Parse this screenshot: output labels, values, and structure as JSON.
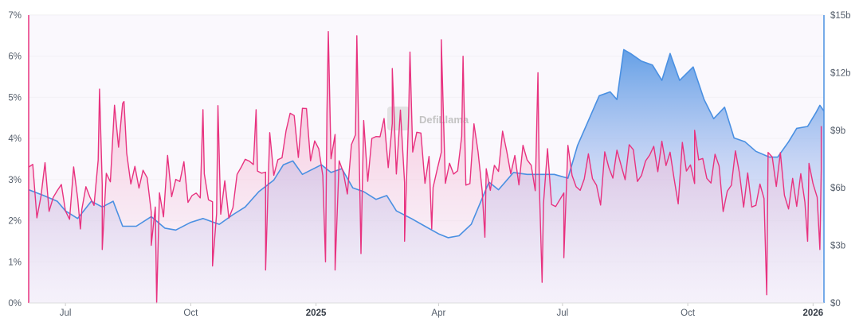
{
  "chart_data": {
    "type": "line",
    "watermark": "DefiLlama",
    "x_ticks": [
      {
        "date": "2024-07-01",
        "label": "Jul",
        "bold": false
      },
      {
        "date": "2024-10-01",
        "label": "Oct",
        "bold": false
      },
      {
        "date": "2025-01-01",
        "label": "2025",
        "bold": true
      },
      {
        "date": "2025-04-01",
        "label": "Apr",
        "bold": false
      },
      {
        "date": "2025-07-01",
        "label": "Jul",
        "bold": false
      },
      {
        "date": "2025-10-01",
        "label": "Oct",
        "bold": false
      },
      {
        "date": "2026-01-01",
        "label": "2026",
        "bold": true
      }
    ],
    "xlim": [
      "2024-06-04",
      "2026-01-09"
    ],
    "left_axis": {
      "ylim": [
        0,
        7
      ],
      "ticks": [
        0,
        1,
        2,
        3,
        4,
        5,
        6,
        7
      ],
      "tick_labels": [
        "0%",
        "1%",
        "2%",
        "3%",
        "4%",
        "5%",
        "6%",
        "7%"
      ],
      "color": "#e8327f"
    },
    "right_axis": {
      "ylim": [
        0,
        15
      ],
      "ticks": [
        0,
        3,
        6,
        9,
        12,
        15
      ],
      "tick_labels": [
        "$0",
        "$3b",
        "$6b",
        "$9b",
        "$12b",
        "$15b"
      ],
      "color": "#4a90e2"
    },
    "grid": true,
    "legend": "none",
    "series": [
      {
        "axis": "left",
        "color": "#e8327f",
        "step_days": 3,
        "base_points": [
          [
            "2024-06-04",
            2.7
          ],
          [
            "2024-06-20",
            2.8
          ],
          [
            "2024-07-05",
            2.6
          ],
          [
            "2024-07-15",
            2.8
          ],
          [
            "2024-07-28",
            3.2
          ],
          [
            "2024-08-10",
            4.5
          ],
          [
            "2024-08-17",
            3.5
          ],
          [
            "2024-08-26",
            2.9
          ],
          [
            "2024-09-15",
            2.8
          ],
          [
            "2024-10-01",
            2.8
          ],
          [
            "2024-10-20",
            2.6
          ],
          [
            "2024-11-05",
            2.8
          ],
          [
            "2024-11-20",
            2.9
          ],
          [
            "2024-12-01",
            3.5
          ],
          [
            "2024-12-10",
            4.5
          ],
          [
            "2024-12-18",
            4.1
          ],
          [
            "2024-12-28",
            3.8
          ],
          [
            "2025-01-05",
            4.0
          ],
          [
            "2025-01-20",
            3.3
          ],
          [
            "2025-02-05",
            3.6
          ],
          [
            "2025-02-20",
            3.9
          ],
          [
            "2025-03-05",
            3.8
          ],
          [
            "2025-03-20",
            3.6
          ],
          [
            "2025-04-05",
            3.8
          ],
          [
            "2025-04-20",
            3.6
          ],
          [
            "2025-05-10",
            3.5
          ],
          [
            "2025-06-01",
            3.2
          ],
          [
            "2025-06-20",
            3.2
          ],
          [
            "2025-07-10",
            3.0
          ],
          [
            "2025-08-01",
            3.1
          ],
          [
            "2025-09-01",
            3.2
          ],
          [
            "2025-10-01",
            3.2
          ],
          [
            "2025-11-01",
            3.0
          ],
          [
            "2025-12-01",
            2.9
          ],
          [
            "2026-01-09",
            2.8
          ]
        ],
        "spikes": [
          [
            "2024-07-12",
            1.8
          ],
          [
            "2024-07-26",
            5.2
          ],
          [
            "2024-07-28",
            1.3
          ],
          [
            "2024-08-13",
            4.9
          ],
          [
            "2024-09-02",
            1.4
          ],
          [
            "2024-09-06",
            0.0
          ],
          [
            "2024-10-10",
            4.7
          ],
          [
            "2024-10-17",
            0.9
          ],
          [
            "2024-10-21",
            4.8
          ],
          [
            "2024-11-18",
            4.7
          ],
          [
            "2024-11-25",
            0.8
          ],
          [
            "2025-01-08",
            1.0
          ],
          [
            "2025-01-10",
            6.6
          ],
          [
            "2025-01-15",
            0.8
          ],
          [
            "2025-01-31",
            6.5
          ],
          [
            "2025-02-03",
            1.2
          ],
          [
            "2025-02-26",
            5.7
          ],
          [
            "2025-03-07",
            1.5
          ],
          [
            "2025-03-11",
            6.1
          ],
          [
            "2025-03-27",
            1.8
          ],
          [
            "2025-04-03",
            6.4
          ],
          [
            "2025-04-19",
            6.0
          ],
          [
            "2025-05-05",
            1.6
          ],
          [
            "2025-06-13",
            5.6
          ],
          [
            "2025-06-16",
            0.5
          ],
          [
            "2025-07-02",
            1.1
          ],
          [
            "2025-10-06",
            4.2
          ],
          [
            "2025-11-28",
            0.2
          ],
          [
            "2025-12-28",
            1.5
          ],
          [
            "2026-01-06",
            1.3
          ],
          [
            "2026-01-07",
            4.3
          ]
        ]
      },
      {
        "axis": "right",
        "color": "#4a90e2",
        "points": [
          [
            "2024-06-04",
            5.9
          ],
          [
            "2024-06-15",
            5.6
          ],
          [
            "2024-06-25",
            5.3
          ],
          [
            "2024-07-01",
            4.8
          ],
          [
            "2024-07-10",
            4.4
          ],
          [
            "2024-07-20",
            5.3
          ],
          [
            "2024-07-28",
            5.0
          ],
          [
            "2024-08-05",
            5.3
          ],
          [
            "2024-08-12",
            4.0
          ],
          [
            "2024-08-22",
            4.0
          ],
          [
            "2024-09-02",
            4.5
          ],
          [
            "2024-09-12",
            3.9
          ],
          [
            "2024-09-20",
            3.8
          ],
          [
            "2024-10-01",
            4.2
          ],
          [
            "2024-10-10",
            4.4
          ],
          [
            "2024-10-22",
            4.1
          ],
          [
            "2024-11-01",
            4.6
          ],
          [
            "2024-11-10",
            5.0
          ],
          [
            "2024-11-20",
            5.8
          ],
          [
            "2024-12-01",
            6.4
          ],
          [
            "2024-12-08",
            7.2
          ],
          [
            "2024-12-15",
            7.4
          ],
          [
            "2024-12-22",
            6.7
          ],
          [
            "2025-01-05",
            7.2
          ],
          [
            "2025-01-12",
            6.8
          ],
          [
            "2025-01-20",
            7.0
          ],
          [
            "2025-01-28",
            6.0
          ],
          [
            "2025-02-05",
            5.8
          ],
          [
            "2025-02-14",
            5.4
          ],
          [
            "2025-02-22",
            5.6
          ],
          [
            "2025-03-01",
            4.8
          ],
          [
            "2025-03-12",
            4.4
          ],
          [
            "2025-03-22",
            4.0
          ],
          [
            "2025-04-01",
            3.6
          ],
          [
            "2025-04-08",
            3.4
          ],
          [
            "2025-04-16",
            3.5
          ],
          [
            "2025-04-25",
            4.1
          ],
          [
            "2025-05-08",
            6.3
          ],
          [
            "2025-05-15",
            5.9
          ],
          [
            "2025-05-26",
            6.8
          ],
          [
            "2025-06-05",
            6.7
          ],
          [
            "2025-06-15",
            6.7
          ],
          [
            "2025-06-25",
            6.7
          ],
          [
            "2025-07-05",
            6.5
          ],
          [
            "2025-07-12",
            8.2
          ],
          [
            "2025-07-20",
            9.5
          ],
          [
            "2025-07-28",
            10.8
          ],
          [
            "2025-08-05",
            11.0
          ],
          [
            "2025-08-10",
            10.6
          ],
          [
            "2025-08-15",
            13.2
          ],
          [
            "2025-08-20",
            13.0
          ],
          [
            "2025-08-28",
            12.6
          ],
          [
            "2025-09-05",
            12.4
          ],
          [
            "2025-09-12",
            11.6
          ],
          [
            "2025-09-18",
            13.0
          ],
          [
            "2025-09-25",
            11.6
          ],
          [
            "2025-10-05",
            12.3
          ],
          [
            "2025-10-13",
            10.6
          ],
          [
            "2025-10-20",
            9.6
          ],
          [
            "2025-10-28",
            10.2
          ],
          [
            "2025-11-04",
            8.6
          ],
          [
            "2025-11-12",
            8.4
          ],
          [
            "2025-11-20",
            7.9
          ],
          [
            "2025-11-30",
            7.6
          ],
          [
            "2025-12-06",
            7.6
          ],
          [
            "2025-12-14",
            8.4
          ],
          [
            "2025-12-20",
            9.1
          ],
          [
            "2025-12-28",
            9.2
          ],
          [
            "2026-01-03",
            9.9
          ],
          [
            "2026-01-06",
            10.3
          ],
          [
            "2026-01-09",
            10.0
          ]
        ]
      }
    ]
  }
}
